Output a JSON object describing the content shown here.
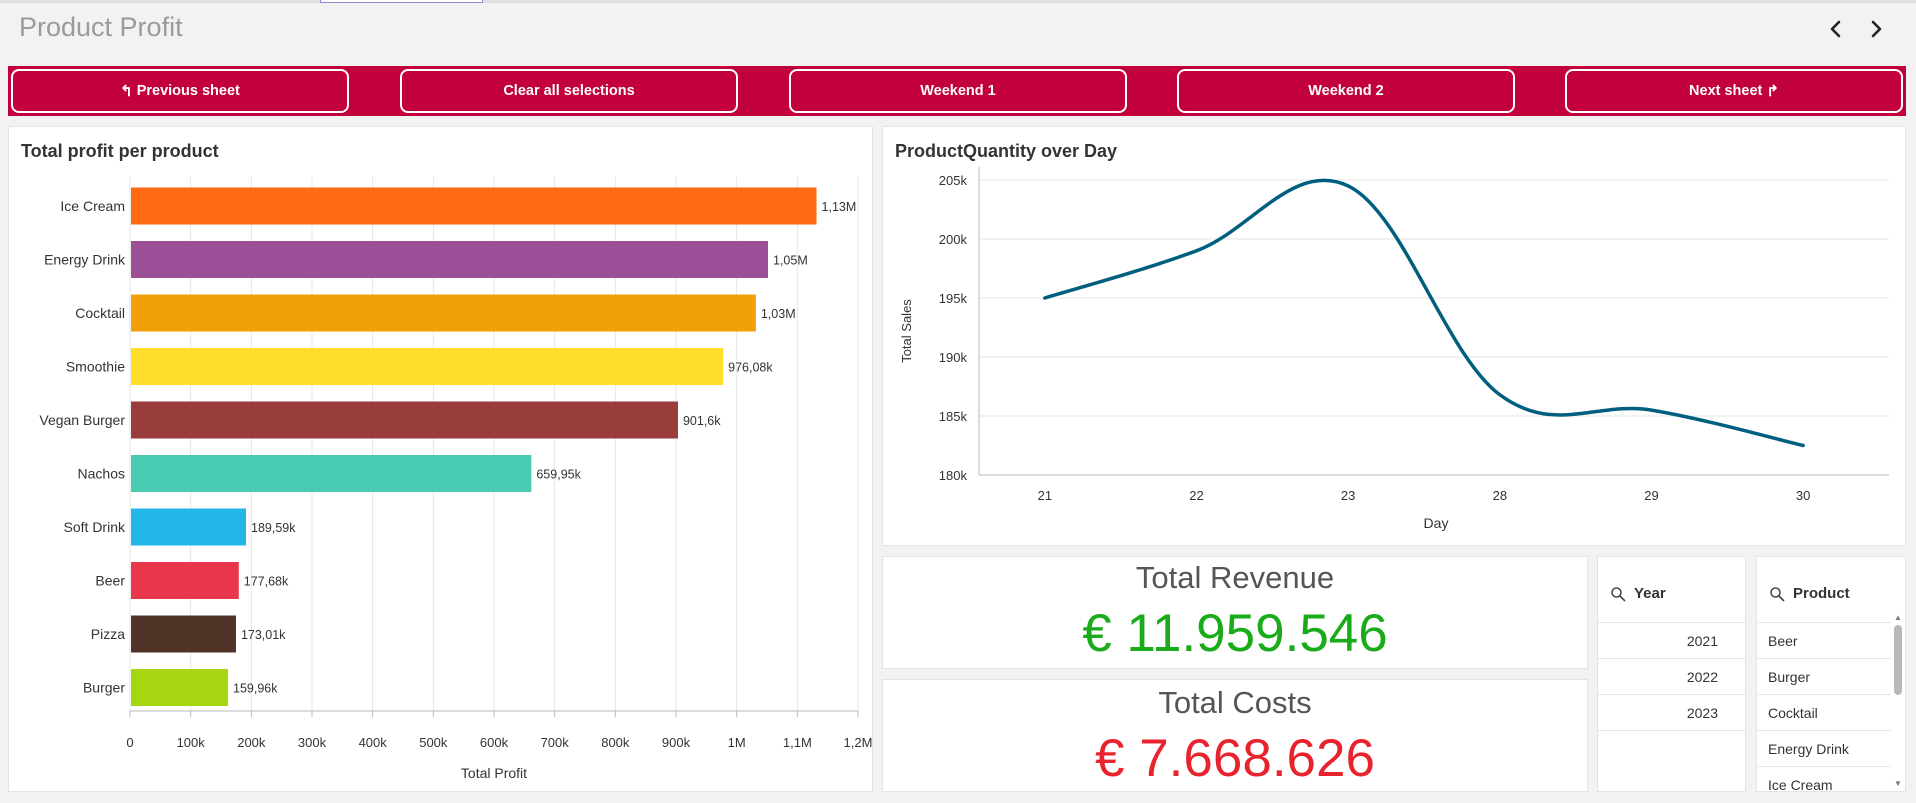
{
  "sheet": {
    "title": "Product Profit",
    "prev_arrow_icon": "chevron-left-icon",
    "next_arrow_icon": "chevron-right-icon"
  },
  "buttons": {
    "previous_sheet": {
      "label": "Previous sheet",
      "icon": "undo-arrow-icon"
    },
    "clear_all": {
      "label": "Clear all selections"
    },
    "weekend1": {
      "label": "Weekend 1"
    },
    "weekend2": {
      "label": "Weekend 2"
    },
    "next_sheet": {
      "label": "Next sheet",
      "icon": "redo-arrow-icon"
    },
    "bar_color": "#c2003c"
  },
  "profit_chart": {
    "title": "Total profit per product",
    "xlabel": "Total Profit",
    "x_ticks": [
      "0",
      "100k",
      "200k",
      "300k",
      "400k",
      "500k",
      "600k",
      "700k",
      "800k",
      "900k",
      "1M",
      "1,1M",
      "1,2M"
    ]
  },
  "quantity_chart": {
    "title": "ProductQuantity over Day",
    "xlabel": "Day",
    "ylabel": "Total Sales",
    "y_ticks": [
      "180k",
      "185k",
      "190k",
      "195k",
      "200k",
      "205k"
    ],
    "line_color": "#005f7f"
  },
  "chart_data": [
    {
      "type": "bar",
      "orientation": "horizontal",
      "title": "Total profit per product",
      "xlabel": "Total Profit",
      "ylabel": "",
      "xlim": [
        0,
        1200000
      ],
      "grid": true,
      "categories": [
        "Ice Cream",
        "Energy Drink",
        "Cocktail",
        "Smoothie",
        "Vegan Burger",
        "Nachos",
        "Soft Drink",
        "Beer",
        "Pizza",
        "Burger"
      ],
      "values": [
        1130000,
        1050000,
        1030000,
        976080,
        901600,
        659950,
        189590,
        177680,
        173010,
        159960
      ],
      "data_labels": [
        "1,13M",
        "1,05M",
        "1,03M",
        "976,08k",
        "901,6k",
        "659,95k",
        "189,59k",
        "177,68k",
        "173,01k",
        "159,96k"
      ],
      "colors": [
        "#ff6a13",
        "#9b4f96",
        "#f2a007",
        "#ffdd2b",
        "#993c3c",
        "#48cbb0",
        "#23b6e8",
        "#e8364a",
        "#4f3427",
        "#a6d610"
      ]
    },
    {
      "type": "line",
      "title": "ProductQuantity over Day",
      "xlabel": "Day",
      "ylabel": "Total Sales",
      "ylim": [
        180000,
        205000
      ],
      "grid": true,
      "x": [
        "21",
        "22",
        "23",
        "28",
        "29",
        "30"
      ],
      "values": [
        195000,
        199000,
        204500,
        186800,
        185500,
        182500
      ]
    }
  ],
  "kpis": {
    "revenue": {
      "label": "Total Revenue",
      "value": "€ 11.959.546",
      "color": "#1aab1a"
    },
    "costs": {
      "label": "Total Costs",
      "value": "€ 7.668.626",
      "color": "#e8232d"
    }
  },
  "filters": {
    "year": {
      "title": "Year",
      "icon": "search-icon",
      "items": [
        "2021",
        "2022",
        "2023"
      ]
    },
    "product": {
      "title": "Product",
      "icon": "search-icon",
      "items": [
        "Beer",
        "Burger",
        "Cocktail",
        "Energy Drink",
        "Ice Cream"
      ]
    }
  }
}
